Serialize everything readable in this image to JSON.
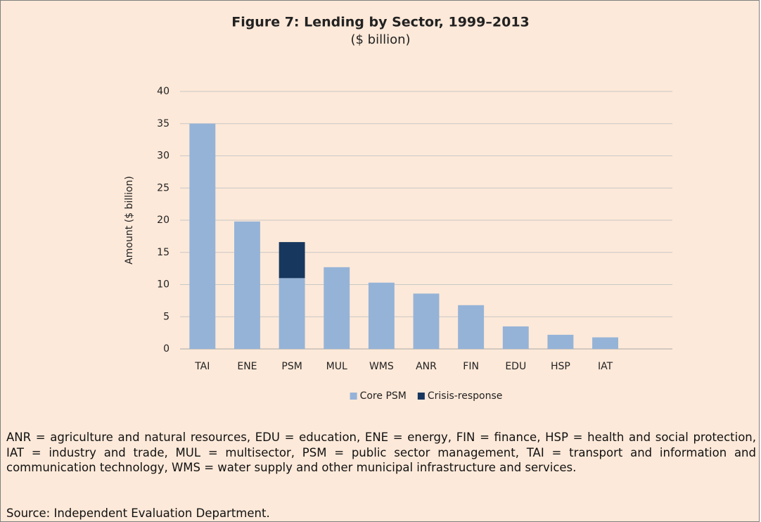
{
  "chart_data": {
    "type": "bar",
    "stacked": true,
    "title": "Figure 7: Lending by Sector, 1999–2013",
    "subtitle": "($ billion)",
    "y_label": "Amount ($ billion)",
    "categories": [
      "TAI",
      "ENE",
      "PSM",
      "MUL",
      "WMS",
      "ANR",
      "FIN",
      "EDU",
      "HSP",
      "IAT",
      null
    ],
    "series": [
      {
        "name": "Core PSM",
        "color": "#95b3d7",
        "values": [
          35.0,
          19.8,
          11.0,
          12.7,
          10.3,
          8.6,
          6.8,
          3.5,
          2.2,
          1.8,
          null
        ]
      },
      {
        "name": "Crisis-response",
        "color": "#17375e",
        "values": [
          null,
          null,
          5.6,
          null,
          null,
          null,
          null,
          null,
          null,
          null,
          null
        ]
      }
    ],
    "ylim": [
      0,
      40
    ],
    "yticks": [
      0,
      5,
      10,
      15,
      20,
      25,
      30,
      35,
      40
    ],
    "grid": true,
    "legend": "bottom",
    "note": "ANR = agriculture and natural resources, EDU = education, ENE = energy, FIN = finance, HSP = health and social protection, IAT = industry and trade, MUL = multisector, PSM = public sector management, TAI = transport and information and communication technology, WMS = water supply and other municipal infrastructure and services.",
    "source": "Source: Independent Evaluation Department."
  }
}
